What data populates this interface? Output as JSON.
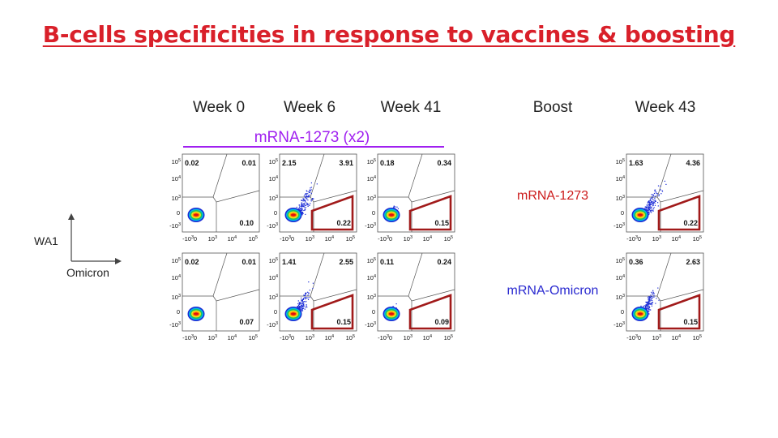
{
  "title": "B-cells specificities in response to vaccines & boosting",
  "columns": {
    "week0": "Week 0",
    "week6": "Week 6",
    "week41": "Week 41",
    "boost": "Boost",
    "week43": "Week 43"
  },
  "regimen": "mRNA-1273 (x2)",
  "boost_rows": {
    "row1": "mRNA-1273",
    "row2": "mRNA-Omicron"
  },
  "axes": {
    "y": "WA1",
    "x": "Omicron"
  },
  "colors": {
    "title": "#d9202a",
    "regimen": "#a020f0",
    "boost_row1": "#cc1b1b",
    "boost_row2": "#2a2ad0",
    "gate": "#a11a1a",
    "dots": "#1a2bd6"
  },
  "chart_data": {
    "type": "scatter",
    "plot_style": "flow cytometry density plot",
    "x_axis_ticks": [
      "-10^3",
      "0",
      "10^3",
      "10^4",
      "10^5"
    ],
    "y_axis_ticks": [
      "10^5",
      "10^4",
      "10^3",
      "0",
      "-10^3"
    ],
    "panels": [
      {
        "row": 1,
        "column": "Week 0",
        "top_left": "0.02",
        "top_right": "0.01",
        "bottom_right": "0.10",
        "spread": 0.1,
        "gate_highlight": false
      },
      {
        "row": 1,
        "column": "Week 6",
        "top_left": "2.15",
        "top_right": "3.91",
        "bottom_right": "0.22",
        "spread": 1.0,
        "gate_highlight": true
      },
      {
        "row": 1,
        "column": "Week 41",
        "top_left": "0.18",
        "top_right": "0.34",
        "bottom_right": "0.15",
        "spread": 0.35,
        "gate_highlight": true
      },
      {
        "row": 1,
        "column": "Week 43",
        "top_left": "1.63",
        "top_right": "4.36",
        "bottom_right": "0.22",
        "spread": 1.0,
        "gate_highlight": true
      },
      {
        "row": 2,
        "column": "Week 0",
        "top_left": "0.02",
        "top_right": "0.01",
        "bottom_right": "0.07",
        "spread": 0.1,
        "gate_highlight": false
      },
      {
        "row": 2,
        "column": "Week 6",
        "top_left": "1.41",
        "top_right": "2.55",
        "bottom_right": "0.15",
        "spread": 0.9,
        "gate_highlight": true
      },
      {
        "row": 2,
        "column": "Week 41",
        "top_left": "0.11",
        "top_right": "0.24",
        "bottom_right": "0.09",
        "spread": 0.3,
        "gate_highlight": true
      },
      {
        "row": 2,
        "column": "Week 43",
        "top_left": "0.36",
        "top_right": "2.63",
        "bottom_right": "0.15",
        "spread": 0.85,
        "gate_highlight": true
      }
    ]
  }
}
